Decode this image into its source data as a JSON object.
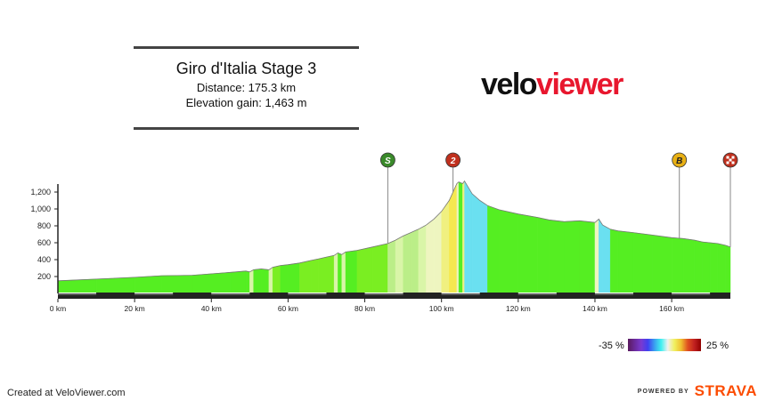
{
  "header": {
    "title": "Giro d'Italia Stage 3",
    "distance": "Distance: 175.3 km",
    "elevation_gain": "Elevation gain: 1,463 m"
  },
  "logo": {
    "part1": "velo",
    "part2": "viewer"
  },
  "footer": {
    "created": "Created at VeloViewer.com",
    "powered": "POWERED BY",
    "strava": "STRAVA"
  },
  "legend": {
    "min": "-35 %",
    "max": "25 %"
  },
  "colors": {
    "strava": "#fc4c02",
    "logo_red": "#e8172e"
  },
  "chart_data": {
    "type": "area",
    "xlabel": "",
    "ylabel": "",
    "xlim": [
      0,
      175.3
    ],
    "ylim": [
      0,
      1400
    ],
    "x_ticks": [
      0,
      20,
      40,
      60,
      80,
      100,
      120,
      140,
      160
    ],
    "x_tick_labels": [
      "0 km",
      "20 km",
      "40 km",
      "60 km",
      "80 km",
      "100 km",
      "120 km",
      "140 km",
      "160 km"
    ],
    "y_ticks": [
      200,
      400,
      600,
      800,
      1000,
      1200
    ],
    "y_tick_labels": [
      "200",
      "400",
      "600",
      "800",
      "1,000",
      "1,200"
    ],
    "profile": [
      {
        "x": 0,
        "y": 150
      },
      {
        "x": 10,
        "y": 170
      },
      {
        "x": 20,
        "y": 190
      },
      {
        "x": 27,
        "y": 210
      },
      {
        "x": 35,
        "y": 215
      },
      {
        "x": 45,
        "y": 250
      },
      {
        "x": 49,
        "y": 265
      },
      {
        "x": 50,
        "y": 255
      },
      {
        "x": 51,
        "y": 280
      },
      {
        "x": 53,
        "y": 290
      },
      {
        "x": 55,
        "y": 280
      },
      {
        "x": 56,
        "y": 310
      },
      {
        "x": 58,
        "y": 330
      },
      {
        "x": 60,
        "y": 340
      },
      {
        "x": 63,
        "y": 360
      },
      {
        "x": 66,
        "y": 390
      },
      {
        "x": 68,
        "y": 410
      },
      {
        "x": 70,
        "y": 430
      },
      {
        "x": 72,
        "y": 450
      },
      {
        "x": 73,
        "y": 480
      },
      {
        "x": 74,
        "y": 460
      },
      {
        "x": 75,
        "y": 490
      },
      {
        "x": 78,
        "y": 510
      },
      {
        "x": 82,
        "y": 550
      },
      {
        "x": 86,
        "y": 590
      },
      {
        "x": 88,
        "y": 630
      },
      {
        "x": 90,
        "y": 680
      },
      {
        "x": 92,
        "y": 720
      },
      {
        "x": 94,
        "y": 760
      },
      {
        "x": 96,
        "y": 810
      },
      {
        "x": 98,
        "y": 880
      },
      {
        "x": 100,
        "y": 970
      },
      {
        "x": 102,
        "y": 1100
      },
      {
        "x": 103,
        "y": 1200
      },
      {
        "x": 104,
        "y": 1300
      },
      {
        "x": 104.5,
        "y": 1320
      },
      {
        "x": 105.5,
        "y": 1300
      },
      {
        "x": 106,
        "y": 1330
      },
      {
        "x": 108,
        "y": 1180
      },
      {
        "x": 110,
        "y": 1100
      },
      {
        "x": 112,
        "y": 1040
      },
      {
        "x": 115,
        "y": 990
      },
      {
        "x": 120,
        "y": 940
      },
      {
        "x": 125,
        "y": 900
      },
      {
        "x": 128,
        "y": 870
      },
      {
        "x": 132,
        "y": 850
      },
      {
        "x": 136,
        "y": 860
      },
      {
        "x": 140,
        "y": 840
      },
      {
        "x": 141,
        "y": 880
      },
      {
        "x": 142,
        "y": 810
      },
      {
        "x": 144,
        "y": 760
      },
      {
        "x": 146,
        "y": 740
      },
      {
        "x": 150,
        "y": 720
      },
      {
        "x": 155,
        "y": 690
      },
      {
        "x": 160,
        "y": 660
      },
      {
        "x": 163,
        "y": 650
      },
      {
        "x": 166,
        "y": 630
      },
      {
        "x": 168,
        "y": 610
      },
      {
        "x": 170,
        "y": 600
      },
      {
        "x": 172,
        "y": 590
      },
      {
        "x": 174,
        "y": 570
      },
      {
        "x": 175.3,
        "y": 550
      }
    ],
    "gradient_colors": {
      "light": "#55ee22",
      "mid": "#7aee22",
      "gentle": "#bbee88",
      "soft": "#d9f5a8",
      "pale": "#eef5c0",
      "yellow": "#f0f080",
      "bright_yellow": "#f5e850",
      "cyan": "#6ae0f0",
      "white": "#e8f5f0"
    },
    "markers": [
      {
        "label": "S",
        "km": 86,
        "color": "#3a8a2a"
      },
      {
        "label": "2",
        "km": 103,
        "color": "#c0301e"
      },
      {
        "label": "B",
        "km": 162,
        "color": "#e8b014"
      },
      {
        "label": "",
        "km": 175.3,
        "color": "#c0301e"
      }
    ]
  }
}
